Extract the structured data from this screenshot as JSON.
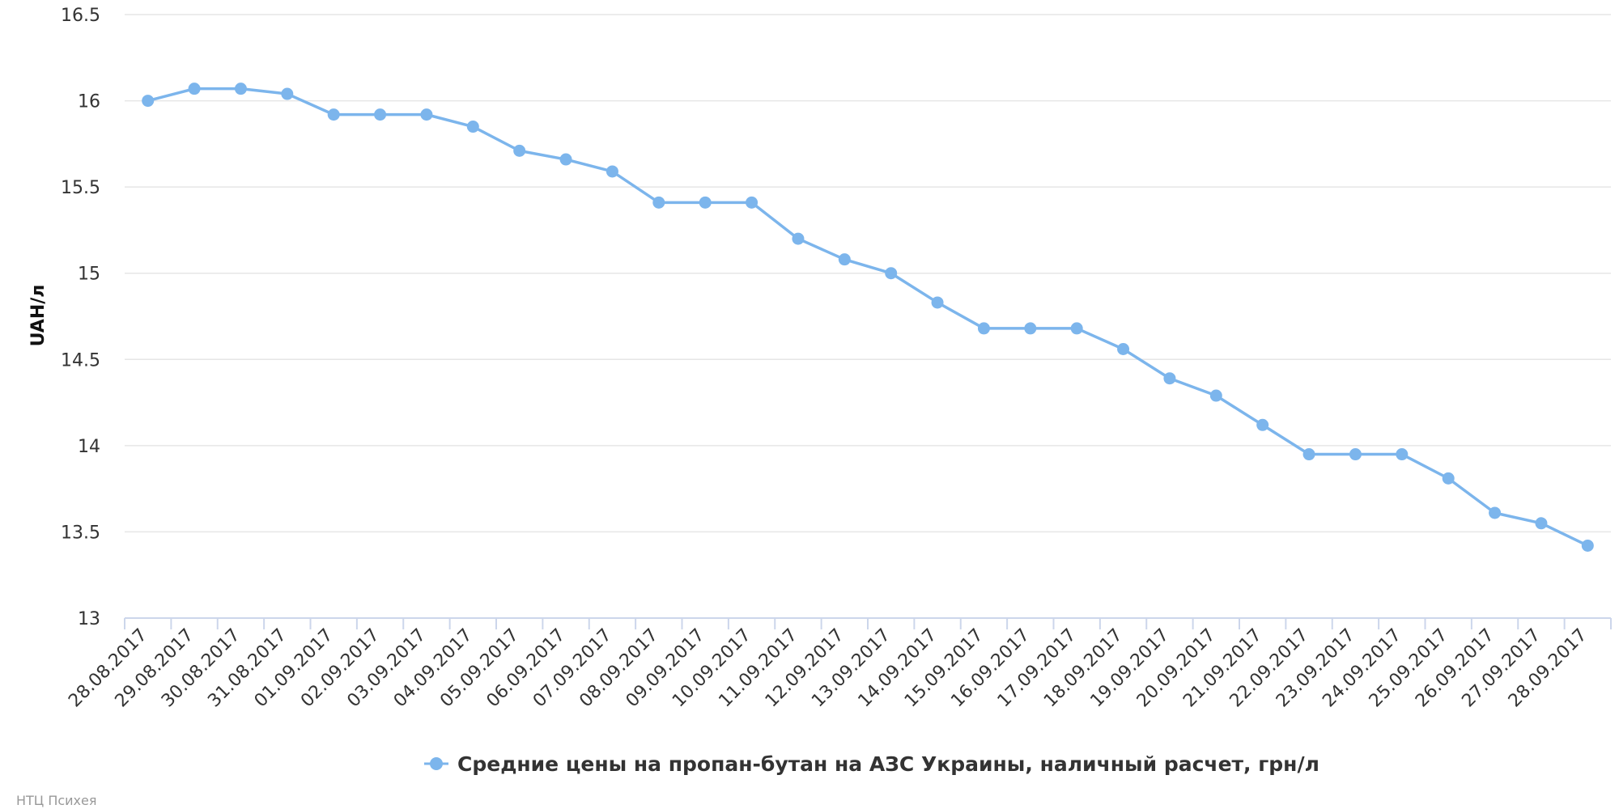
{
  "chart_data": {
    "type": "line",
    "ylabel": "UAH/л",
    "ylim": [
      13,
      16.5
    ],
    "yticks": [
      "13",
      "13.5",
      "14",
      "14.5",
      "15",
      "15.5",
      "16",
      "16.5"
    ],
    "grid": true,
    "legend_position": "bottom-center",
    "categories": [
      "28.08.2017",
      "29.08.2017",
      "30.08.2017",
      "31.08.2017",
      "01.09.2017",
      "02.09.2017",
      "03.09.2017",
      "04.09.2017",
      "05.09.2017",
      "06.09.2017",
      "07.09.2017",
      "08.09.2017",
      "09.09.2017",
      "10.09.2017",
      "11.09.2017",
      "12.09.2017",
      "13.09.2017",
      "14.09.2017",
      "15.09.2017",
      "16.09.2017",
      "17.09.2017",
      "18.09.2017",
      "19.09.2017",
      "20.09.2017",
      "21.09.2017",
      "22.09.2017",
      "23.09.2017",
      "24.09.2017",
      "25.09.2017",
      "26.09.2017",
      "27.09.2017",
      "28.09.2017"
    ],
    "series": [
      {
        "name": "Средние цены на пропан-бутан на АЗС Украины, наличный расчет, грн/л",
        "color": "#7cb5ec",
        "values": [
          16.0,
          16.07,
          16.07,
          16.04,
          15.92,
          15.92,
          15.92,
          15.85,
          15.71,
          15.66,
          15.59,
          15.41,
          15.41,
          15.41,
          15.2,
          15.08,
          15.0,
          14.83,
          14.68,
          14.68,
          14.68,
          14.56,
          14.39,
          14.29,
          14.12,
          13.95,
          13.95,
          13.95,
          13.81,
          13.61,
          13.55,
          13.42
        ]
      }
    ]
  },
  "credit": "НТЦ Психея"
}
